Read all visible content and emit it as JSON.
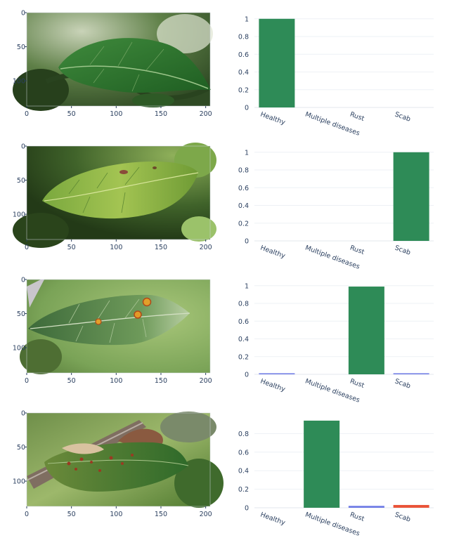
{
  "colors": {
    "bar_dominant": "#2e8b57",
    "bar_secondary": "#6b78e5",
    "bar_tertiary": "#ea5438",
    "tick_text": "#2a3f5f"
  },
  "chart_data": [
    {
      "type": "image",
      "content": "leaf-healthy-photo",
      "xticks": [
        "0",
        "50",
        "100",
        "150",
        "200"
      ],
      "yticks": [
        "0",
        "50",
        "100"
      ],
      "xlim": [
        0,
        205
      ],
      "ylim": [
        0,
        137
      ]
    },
    {
      "type": "bar",
      "categories": [
        "Healthy",
        "Multiple diseases",
        "Rust",
        "Scab"
      ],
      "values": [
        1.0,
        0.0,
        0.0,
        0.0
      ],
      "yticks": [
        "0",
        "0.2",
        "0.4",
        "0.6",
        "0.8",
        "1"
      ],
      "ylim": [
        0,
        1.03
      ],
      "grid": true
    },
    {
      "type": "image",
      "content": "leaf-scab-photo",
      "xticks": [
        "0",
        "50",
        "100",
        "150",
        "200"
      ],
      "yticks": [
        "0",
        "50",
        "100"
      ],
      "xlim": [
        0,
        205
      ],
      "ylim": [
        0,
        137
      ]
    },
    {
      "type": "bar",
      "categories": [
        "Healthy",
        "Multiple diseases",
        "Rust",
        "Scab"
      ],
      "values": [
        0.0,
        0.0,
        0.0,
        1.0
      ],
      "yticks": [
        "0",
        "0.2",
        "0.4",
        "0.6",
        "0.8",
        "1"
      ],
      "ylim": [
        0,
        1.03
      ],
      "grid": true
    },
    {
      "type": "image",
      "content": "leaf-rust-photo",
      "xticks": [
        "0",
        "50",
        "100",
        "150",
        "200"
      ],
      "yticks": [
        "0",
        "50",
        "100"
      ],
      "xlim": [
        0,
        205
      ],
      "ylim": [
        0,
        137
      ]
    },
    {
      "type": "bar",
      "categories": [
        "Healthy",
        "Multiple diseases",
        "Rust",
        "Scab"
      ],
      "values": [
        0.005,
        0.0,
        0.99,
        0.003
      ],
      "yticks": [
        "0",
        "0.2",
        "0.4",
        "0.6",
        "0.8",
        "1"
      ],
      "ylim": [
        0,
        1.03
      ],
      "grid": true
    },
    {
      "type": "image",
      "content": "leaf-multiple-diseases-photo",
      "xticks": [
        "0",
        "50",
        "100",
        "150",
        "200"
      ],
      "yticks": [
        "0",
        "50",
        "100"
      ],
      "xlim": [
        0,
        205
      ],
      "ylim": [
        0,
        137
      ]
    },
    {
      "type": "bar",
      "categories": [
        "Healthy",
        "Multiple diseases",
        "Rust",
        "Scab"
      ],
      "values": [
        0.0,
        0.94,
        0.02,
        0.03
      ],
      "yticks": [
        "0",
        "0.2",
        "0.4",
        "0.6",
        "0.8"
      ],
      "ylim": [
        0,
        0.985
      ],
      "grid": true
    }
  ]
}
